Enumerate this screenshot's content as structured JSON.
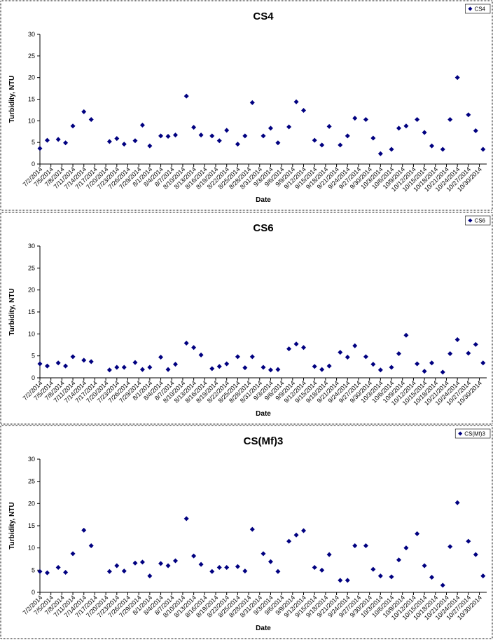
{
  "chart_data": [
    {
      "type": "scatter",
      "title": "CS4",
      "xlabel": "Date",
      "ylabel": "Turbidity, NTU",
      "x": [
        "7/2/2014",
        "7/4/2014",
        "7/7/2014",
        "7/9/2014",
        "7/11/2014",
        "7/14/2014",
        "7/16/2014",
        "7/21/2014",
        "7/23/2014",
        "7/25/2014",
        "7/28/2014",
        "7/30/2014",
        "8/1/2014",
        "8/4/2014",
        "8/6/2014",
        "8/8/2014",
        "8/11/2014",
        "8/13/2014",
        "8/15/2014",
        "8/18/2014",
        "8/20/2014",
        "8/22/2014",
        "8/25/2014",
        "8/27/2014",
        "8/29/2014",
        "9/1/2014",
        "9/3/2014",
        "9/5/2014",
        "9/8/2014",
        "9/10/2014",
        "9/12/2014",
        "9/15/2014",
        "9/17/2014",
        "9/19/2014",
        "9/22/2014",
        "9/24/2014",
        "9/26/2014",
        "9/29/2014",
        "10/1/2014",
        "10/3/2014",
        "10/6/2014",
        "10/8/2014",
        "10/10/2014",
        "10/13/2014",
        "10/15/2014",
        "10/17/2014",
        "10/20/2014",
        "10/22/2014",
        "10/24/2014",
        "10/27/2014",
        "10/29/2014",
        "10/31/2014"
      ],
      "series": [
        {
          "name": "CS4",
          "color": "#000080",
          "values": [
            3.6,
            5.5,
            5.7,
            4.9,
            8.8,
            12.1,
            10.3,
            5.2,
            5.9,
            4.6,
            5.4,
            9.0,
            4.2,
            6.5,
            6.4,
            6.7,
            15.7,
            8.5,
            6.7,
            6.5,
            5.4,
            7.8,
            4.6,
            6.5,
            14.2,
            6.5,
            8.3,
            4.9,
            8.6,
            14.4,
            12.4,
            5.5,
            4.4,
            8.7,
            4.4,
            6.5,
            10.6,
            10.3,
            6.0,
            2.4,
            3.4,
            8.3,
            8.8,
            10.3,
            7.3,
            4.2,
            3.4,
            10.3,
            20.0,
            11.4,
            7.7,
            3.4
          ]
        }
      ],
      "xlim": [
        "7/2/2014",
        "11/1/2014"
      ],
      "xticks": [
        "7/2/2014",
        "7/5/2014",
        "7/8/2014",
        "7/11/2014",
        "7/14/2014",
        "7/17/2014",
        "7/20/2014",
        "7/23/2014",
        "7/26/2014",
        "7/29/2014",
        "8/1/2014",
        "8/4/2014",
        "8/7/2014",
        "8/10/2014",
        "8/13/2014",
        "8/16/2014",
        "8/19/2014",
        "8/22/2014",
        "8/25/2014",
        "8/28/2014",
        "8/31/2014",
        "9/3/2014",
        "9/6/2014",
        "9/9/2014",
        "9/12/2014",
        "9/15/2014",
        "9/18/2014",
        "9/21/2014",
        "9/24/2014",
        "9/27/2014",
        "9/30/2014",
        "10/3/2014",
        "10/6/2014",
        "10/9/2014",
        "10/12/2014",
        "10/15/2014",
        "10/18/2014",
        "10/21/2014",
        "10/24/2014",
        "10/27/2014",
        "10/30/2014"
      ],
      "ylim": [
        0,
        30
      ],
      "yticks": [
        0,
        5,
        10,
        15,
        20,
        25,
        30
      ],
      "legend": "top-right"
    },
    {
      "type": "scatter",
      "title": "CS6",
      "xlabel": "Date",
      "ylabel": "Turbidity, NTU",
      "x": [
        "7/2/2014",
        "7/4/2014",
        "7/7/2014",
        "7/9/2014",
        "7/11/2014",
        "7/14/2014",
        "7/16/2014",
        "7/21/2014",
        "7/23/2014",
        "7/25/2014",
        "7/28/2014",
        "7/30/2014",
        "8/1/2014",
        "8/4/2014",
        "8/6/2014",
        "8/8/2014",
        "8/11/2014",
        "8/13/2014",
        "8/15/2014",
        "8/18/2014",
        "8/20/2014",
        "8/22/2014",
        "8/25/2014",
        "8/27/2014",
        "8/29/2014",
        "9/1/2014",
        "9/3/2014",
        "9/5/2014",
        "9/8/2014",
        "9/10/2014",
        "9/12/2014",
        "9/15/2014",
        "9/17/2014",
        "9/19/2014",
        "9/22/2014",
        "9/24/2014",
        "9/26/2014",
        "9/29/2014",
        "10/1/2014",
        "10/3/2014",
        "10/6/2014",
        "10/8/2014",
        "10/10/2014",
        "10/13/2014",
        "10/15/2014",
        "10/17/2014",
        "10/20/2014",
        "10/22/2014",
        "10/24/2014",
        "10/27/2014",
        "10/29/2014",
        "10/31/2014"
      ],
      "series": [
        {
          "name": "CS6",
          "color": "#000080",
          "values": [
            3.2,
            2.7,
            3.4,
            2.7,
            4.8,
            4.0,
            3.7,
            1.8,
            2.4,
            2.4,
            3.5,
            1.9,
            2.4,
            4.7,
            1.9,
            3.1,
            7.9,
            6.9,
            5.2,
            2.1,
            2.6,
            3.2,
            4.8,
            2.3,
            4.8,
            2.4,
            1.8,
            1.9,
            6.6,
            7.7,
            6.9,
            2.6,
            1.9,
            2.7,
            5.8,
            4.7,
            7.3,
            4.8,
            3.1,
            1.8,
            2.4,
            5.5,
            9.7,
            3.2,
            1.5,
            3.4,
            1.3,
            5.5,
            8.7,
            5.6,
            7.6,
            3.4
          ]
        }
      ],
      "xlim": [
        "7/2/2014",
        "11/1/2014"
      ],
      "xticks": [
        "7/2/2014",
        "7/5/2014",
        "7/8/2014",
        "7/11/2014",
        "7/14/2014",
        "7/17/2014",
        "7/20/2014",
        "7/23/2014",
        "7/26/2014",
        "7/29/2014",
        "8/1/2014",
        "8/4/2014",
        "8/7/2014",
        "8/10/2014",
        "8/13/2014",
        "8/16/2014",
        "8/19/2014",
        "8/22/2014",
        "8/25/2014",
        "8/28/2014",
        "8/31/2014",
        "9/3/2014",
        "9/6/2014",
        "9/9/2014",
        "9/12/2014",
        "9/15/2014",
        "9/18/2014",
        "9/21/2014",
        "9/24/2014",
        "9/27/2014",
        "9/30/2014",
        "10/3/2014",
        "10/6/2014",
        "10/9/2014",
        "10/12/2014",
        "10/15/2014",
        "10/18/2014",
        "10/21/2014",
        "10/24/2014",
        "10/27/2014",
        "10/30/2014"
      ],
      "ylim": [
        0,
        30
      ],
      "yticks": [
        0,
        5,
        10,
        15,
        20,
        25,
        30
      ],
      "legend": "top-right"
    },
    {
      "type": "scatter",
      "title": "CS(Mf)3",
      "xlabel": "Date",
      "ylabel": "Turbidity, NTU",
      "x": [
        "7/2/2014",
        "7/4/2014",
        "7/7/2014",
        "7/9/2014",
        "7/11/2014",
        "7/14/2014",
        "7/16/2014",
        "7/21/2014",
        "7/23/2014",
        "7/25/2014",
        "7/28/2014",
        "7/30/2014",
        "8/1/2014",
        "8/4/2014",
        "8/6/2014",
        "8/8/2014",
        "8/11/2014",
        "8/13/2014",
        "8/15/2014",
        "8/18/2014",
        "8/20/2014",
        "8/22/2014",
        "8/25/2014",
        "8/27/2014",
        "8/29/2014",
        "9/1/2014",
        "9/3/2014",
        "9/5/2014",
        "9/8/2014",
        "9/10/2014",
        "9/12/2014",
        "9/15/2014",
        "9/17/2014",
        "9/19/2014",
        "9/22/2014",
        "9/24/2014",
        "9/26/2014",
        "9/29/2014",
        "10/1/2014",
        "10/3/2014",
        "10/6/2014",
        "10/8/2014",
        "10/10/2014",
        "10/13/2014",
        "10/15/2014",
        "10/17/2014",
        "10/20/2014",
        "10/22/2014",
        "10/24/2014",
        "10/27/2014",
        "10/29/2014",
        "10/31/2014"
      ],
      "series": [
        {
          "name": "CS(Mf)3",
          "color": "#000080",
          "values": [
            4.7,
            4.4,
            5.6,
            4.5,
            8.7,
            14.0,
            10.5,
            4.7,
            6.0,
            4.8,
            6.6,
            6.8,
            3.7,
            6.5,
            6.0,
            7.1,
            16.6,
            8.2,
            6.3,
            4.7,
            5.6,
            5.6,
            5.8,
            4.8,
            14.2,
            8.7,
            6.9,
            4.7,
            11.5,
            12.9,
            13.9,
            5.6,
            5.0,
            8.5,
            2.7,
            2.7,
            10.5,
            10.5,
            5.2,
            3.7,
            3.5,
            7.3,
            10.0,
            13.2,
            6.0,
            3.4,
            1.6,
            10.3,
            20.2,
            11.5,
            8.5,
            3.7
          ]
        }
      ],
      "xlim": [
        "7/2/2014",
        "11/1/2014"
      ],
      "xticks": [
        "7/2/2014",
        "7/5/2014",
        "7/8/2014",
        "7/11/2014",
        "7/14/2014",
        "7/17/2014",
        "7/20/2014",
        "7/23/2014",
        "7/26/2014",
        "7/29/2014",
        "8/1/2014",
        "8/4/2014",
        "8/7/2014",
        "8/10/2014",
        "8/13/2014",
        "8/16/2014",
        "8/19/2014",
        "8/22/2014",
        "8/25/2014",
        "8/28/2014",
        "8/31/2014",
        "9/3/2014",
        "9/6/2014",
        "9/9/2014",
        "9/12/2014",
        "9/15/2014",
        "9/18/2014",
        "9/21/2014",
        "9/24/2014",
        "9/27/2014",
        "9/30/2014",
        "10/3/2014",
        "10/6/2014",
        "10/9/2014",
        "10/12/2014",
        "10/15/2014",
        "10/18/2014",
        "10/21/2014",
        "10/24/2014",
        "10/27/2014",
        "10/30/2014"
      ],
      "ylim": [
        0,
        30
      ],
      "yticks": [
        0,
        5,
        10,
        15,
        20,
        25,
        30
      ],
      "legend": "top-right"
    }
  ]
}
